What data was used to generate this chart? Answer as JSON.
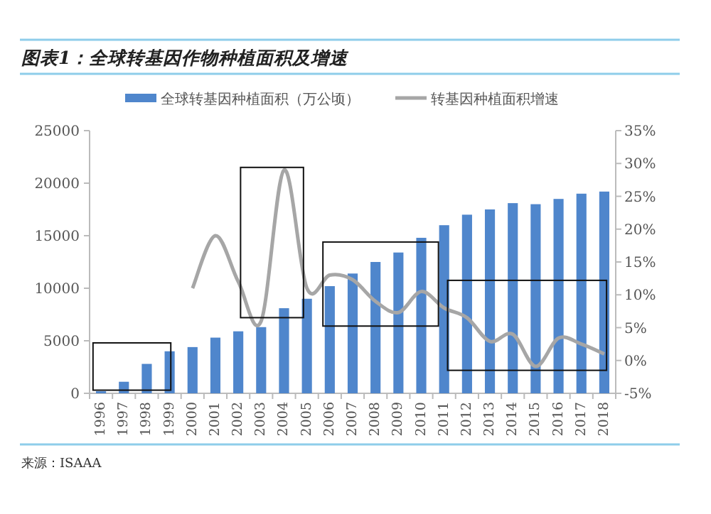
{
  "chart_data": {
    "type": "bar",
    "title": "图表1：全球转基因作物种植面积及增速",
    "categories": [
      "1996",
      "1997",
      "1998",
      "1999",
      "2000",
      "2001",
      "2002",
      "2003",
      "2004",
      "2005",
      "2006",
      "2007",
      "2008",
      "2009",
      "2010",
      "2011",
      "2012",
      "2013",
      "2014",
      "2015",
      "2016",
      "2017",
      "2018"
    ],
    "series": [
      {
        "name": "全球转基因种植面积（万公顷）",
        "color": "#4f86cc",
        "values": [
          200,
          1100,
          2800,
          4000,
          4400,
          5300,
          5900,
          6300,
          8100,
          9000,
          10200,
          11400,
          12500,
          13400,
          14800,
          16000,
          17000,
          17500,
          18100,
          18000,
          18500,
          19000,
          19200
        ]
      },
      {
        "name": "转基因种植面积增速",
        "type": "line",
        "axis": "y2",
        "color": "#a6a6a6",
        "values": [
          null,
          null,
          null,
          null,
          11,
          19,
          12,
          6,
          29,
          11,
          13,
          12.3,
          9,
          7.3,
          10.5,
          8,
          6.5,
          2.9,
          4,
          -0.9,
          3.4,
          2.5,
          1
        ]
      }
    ],
    "ylim": [
      0,
      25000
    ],
    "yticks": [
      0,
      5000,
      10000,
      15000,
      20000,
      25000
    ],
    "y2lim": [
      -5,
      35
    ],
    "y2ticks": [
      {
        "value": -5,
        "label": "-5%"
      },
      {
        "value": 0,
        "label": "0%"
      },
      {
        "value": 5,
        "label": "5%"
      },
      {
        "value": 10,
        "label": "10%"
      },
      {
        "value": 15,
        "label": "15%"
      },
      {
        "value": 20,
        "label": "20%"
      },
      {
        "value": 25,
        "label": "25%"
      },
      {
        "value": 30,
        "label": "30%"
      },
      {
        "value": 35,
        "label": "35%"
      }
    ],
    "legend": "top",
    "grid": false,
    "annotations": [
      "来源：ISAAA"
    ]
  }
}
